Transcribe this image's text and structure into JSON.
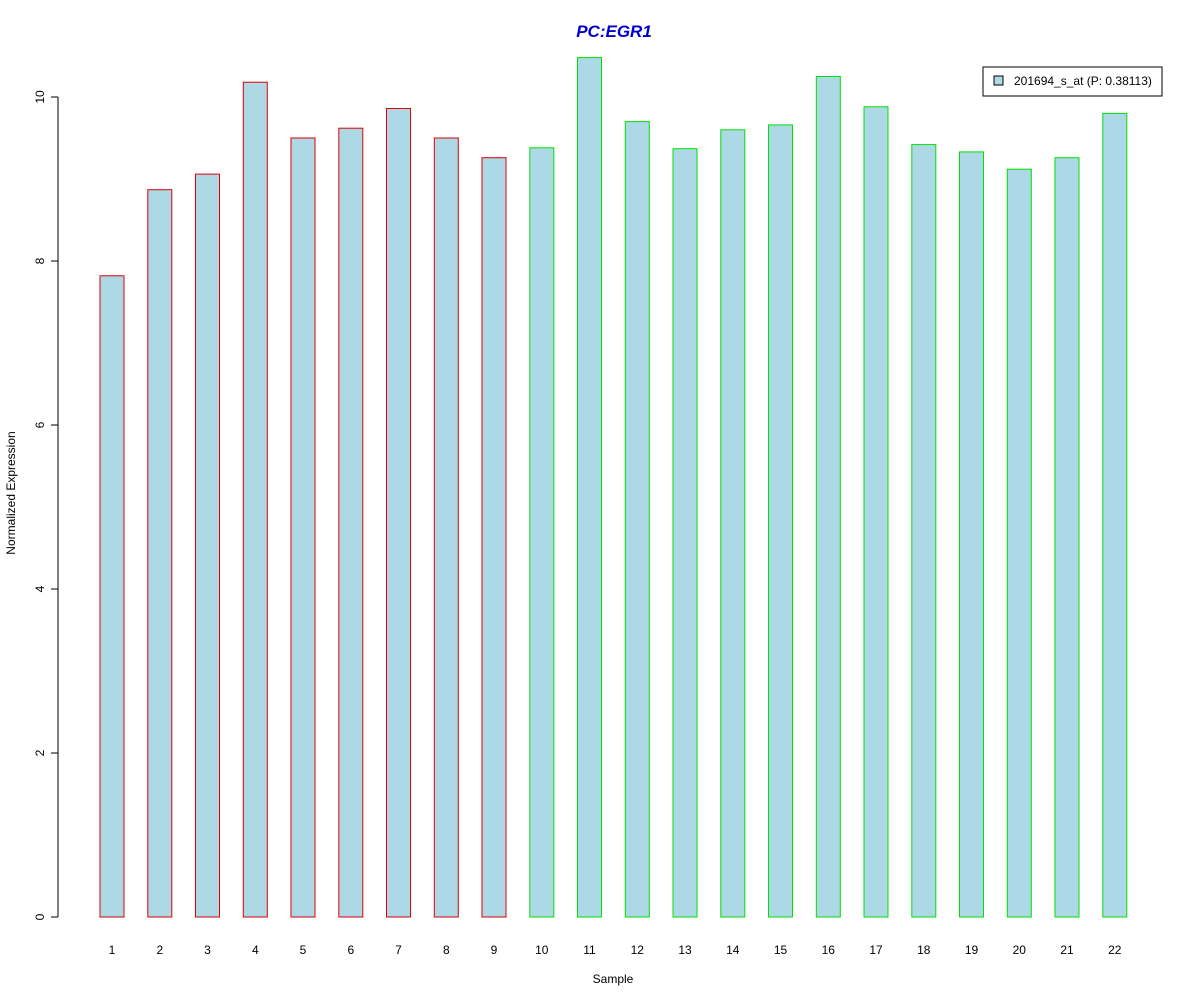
{
  "chart_data": {
    "type": "bar",
    "title": "PC:EGR1",
    "xlabel": "Sample",
    "ylabel": "Normalized Expression",
    "categories": [
      "1",
      "2",
      "3",
      "4",
      "5",
      "6",
      "7",
      "8",
      "9",
      "10",
      "11",
      "12",
      "13",
      "14",
      "15",
      "16",
      "17",
      "18",
      "19",
      "20",
      "21",
      "22"
    ],
    "series": [
      {
        "name": "201694_s_at (P: 0.38113)",
        "values": [
          7.82,
          8.87,
          9.06,
          10.18,
          9.5,
          9.62,
          9.86,
          9.5,
          9.26,
          9.38,
          10.48,
          9.7,
          9.37,
          9.6,
          9.66,
          10.25,
          9.88,
          9.42,
          9.33,
          9.12,
          9.26,
          9.8
        ]
      }
    ],
    "ylim": [
      0,
      10.5
    ],
    "yticks": [
      0,
      2,
      4,
      6,
      8,
      10
    ],
    "grid": false,
    "legend_position": "top-right",
    "colors": {
      "title": "#0000CC",
      "bar_fill": "#ADD8E6",
      "group1_border": "#E00000",
      "group2_border": "#00E000",
      "axis": "#000000"
    },
    "group1_count": 9
  }
}
